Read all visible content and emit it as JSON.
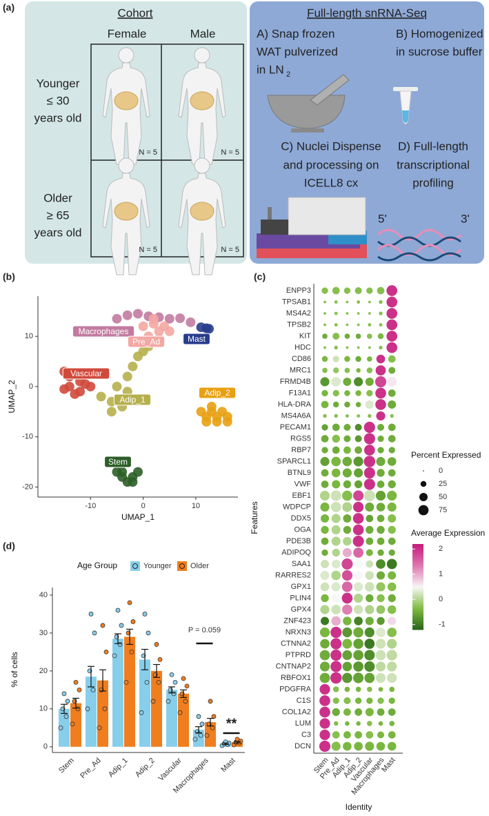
{
  "figure": {
    "panel_labels": [
      "(a)",
      "(b)",
      "(c)",
      "(d)"
    ],
    "cohort": {
      "title": "Cohort",
      "columns": [
        "Female",
        "Male"
      ],
      "rows": [
        [
          "Younger",
          "≤ 30",
          "years old"
        ],
        [
          "Older",
          "≥ 65",
          "years old"
        ]
      ],
      "counts": [
        "N = 5",
        "N = 5",
        "N = 5",
        "N = 5"
      ]
    },
    "protocol": {
      "title": "Full-length snRNA-Seq",
      "steps": [
        {
          "lines": [
            "A) Snap frozen",
            "WAT pulverized",
            "in LN"
          ],
          "subscript": "2"
        },
        {
          "lines": [
            "B) Homogenized",
            "in sucrose buffer"
          ]
        },
        {
          "lines": [
            "C) Nuclei Dispense",
            "and processing on",
            "ICELL8 cx"
          ]
        },
        {
          "lines": [
            "D) Full-length",
            "transcriptional",
            "profiling"
          ]
        }
      ],
      "ends": [
        "5'",
        "3'"
      ]
    }
  },
  "chart_data": [
    {
      "type": "scatter",
      "xlabel": "UMAP_1",
      "ylabel": "UMAP_2",
      "xlim": [
        -20,
        18
      ],
      "ylim": [
        -22,
        18
      ],
      "xticks": [
        -10,
        0,
        10
      ],
      "yticks": [
        -20,
        -10,
        0,
        10
      ],
      "series": [
        {
          "name": "Macrophages",
          "color": "#C27BA0",
          "x": [
            -5,
            -3,
            -1,
            1,
            3,
            5,
            7,
            9
          ],
          "y": [
            13.5,
            14.2,
            14.5,
            14.0,
            13.8,
            13.5,
            13.6,
            12.8
          ]
        },
        {
          "name": "Pre_Ad",
          "color": "#F4A7A3",
          "x": [
            0,
            2,
            3,
            4,
            5,
            3,
            1,
            2
          ],
          "y": [
            12,
            12.5,
            11,
            12,
            11,
            9.5,
            10,
            13.5
          ]
        },
        {
          "name": "Mast",
          "color": "#283C8C",
          "x": [
            11,
            12,
            12.5
          ],
          "y": [
            11.8,
            11.6,
            11.5
          ]
        },
        {
          "name": "Vascular",
          "color": "#D04A3C",
          "x": [
            -15,
            -14,
            -13,
            -12,
            -11,
            -14,
            -12,
            -10,
            -15,
            -13
          ],
          "y": [
            3,
            2,
            2.5,
            1,
            0.5,
            0,
            -1,
            0,
            -0.5,
            -1.5
          ]
        },
        {
          "name": "Adip_1",
          "color": "#B6B04C",
          "x": [
            -8,
            -6,
            -5,
            -4,
            -3,
            -2,
            -1,
            0,
            1,
            2,
            -3,
            -6
          ],
          "y": [
            -2,
            -3,
            0,
            -4,
            2,
            4,
            6,
            7,
            8,
            9,
            -1,
            -5
          ]
        },
        {
          "name": "Adip_2",
          "color": "#E8A012",
          "x": [
            11,
            12,
            13,
            14,
            15,
            16,
            12,
            14,
            16,
            13
          ],
          "y": [
            -5,
            -6,
            -5,
            -6,
            -5,
            -6,
            -7,
            -7,
            -7,
            -4
          ]
        },
        {
          "name": "Stem",
          "color": "#2D5E28",
          "x": [
            -5,
            -4,
            -3,
            -2,
            -1,
            -4,
            -2
          ],
          "y": [
            -17,
            -18,
            -19,
            -18,
            -17,
            -17,
            -19
          ]
        }
      ]
    },
    {
      "type": "dot",
      "xlabel": "Identity",
      "ylabel": "Features",
      "categories": [
        "Stem",
        "Pre_Ad",
        "Adip_1",
        "Adip_2",
        "Vascular",
        "Macrophages",
        "Mast"
      ],
      "features": [
        "ENPP3",
        "TPSAB1",
        "MS4A2",
        "TPSB2",
        "KIT",
        "HDC",
        "CD86",
        "MRC1",
        "FRMD4B",
        "F13A1",
        "HLA-DRA",
        "MS4A6A",
        "PECAM1",
        "RGS5",
        "RBP7",
        "SPARCL1",
        "BTNL9",
        "VWF",
        "EBF1",
        "WDPCP",
        "DDX5",
        "OGA",
        "PDE3B",
        "ADIPOQ",
        "SAA1",
        "RARRES2",
        "GPX1",
        "PLIN4",
        "GPX4",
        "ZNF423",
        "NRXN3",
        "CTNNA2",
        "PTPRD",
        "CNTNAP2",
        "RBFOX1",
        "PDGFRA",
        "C1S",
        "COL1A2",
        "LUM",
        "C3",
        "DCN"
      ],
      "percent": [
        [
          30,
          40,
          30,
          35,
          30,
          40,
          85
        ],
        [
          5,
          8,
          5,
          8,
          5,
          10,
          85
        ],
        [
          5,
          8,
          5,
          5,
          5,
          10,
          85
        ],
        [
          5,
          8,
          5,
          5,
          8,
          8,
          85
        ],
        [
          20,
          35,
          20,
          20,
          20,
          25,
          85
        ],
        [
          5,
          10,
          5,
          5,
          5,
          10,
          85
        ],
        [
          25,
          30,
          25,
          25,
          20,
          55,
          40
        ],
        [
          20,
          25,
          20,
          15,
          25,
          75,
          35
        ],
        [
          60,
          65,
          50,
          60,
          50,
          90,
          70
        ],
        [
          30,
          30,
          25,
          25,
          30,
          85,
          40
        ],
        [
          40,
          25,
          25,
          20,
          50,
          85,
          50
        ],
        [
          10,
          10,
          8,
          8,
          10,
          60,
          10
        ],
        [
          30,
          40,
          35,
          35,
          90,
          35,
          40
        ],
        [
          40,
          45,
          35,
          35,
          90,
          30,
          40
        ],
        [
          30,
          40,
          40,
          40,
          85,
          30,
          30
        ],
        [
          60,
          65,
          65,
          70,
          95,
          60,
          55
        ],
        [
          40,
          55,
          60,
          60,
          90,
          45,
          40
        ],
        [
          40,
          50,
          45,
          45,
          90,
          40,
          45
        ],
        [
          70,
          80,
          75,
          80,
          90,
          70,
          70
        ],
        [
          60,
          75,
          70,
          80,
          60,
          55,
          60
        ],
        [
          50,
          60,
          50,
          85,
          40,
          40,
          50
        ],
        [
          45,
          60,
          45,
          85,
          45,
          45,
          45
        ],
        [
          40,
          60,
          55,
          90,
          40,
          40,
          40
        ],
        [
          30,
          45,
          60,
          75,
          35,
          30,
          30
        ],
        [
          50,
          55,
          90,
          50,
          40,
          65,
          75
        ],
        [
          60,
          65,
          80,
          50,
          55,
          50,
          50
        ],
        [
          55,
          60,
          80,
          60,
          65,
          60,
          55
        ],
        [
          45,
          60,
          85,
          60,
          45,
          45,
          45
        ],
        [
          60,
          65,
          75,
          60,
          60,
          55,
          55
        ],
        [
          50,
          65,
          55,
          55,
          50,
          45,
          50
        ],
        [
          70,
          90,
          70,
          75,
          70,
          65,
          65
        ],
        [
          65,
          90,
          70,
          75,
          75,
          70,
          70
        ],
        [
          75,
          90,
          70,
          75,
          80,
          75,
          80
        ],
        [
          70,
          90,
          65,
          75,
          80,
          70,
          70
        ],
        [
          75,
          95,
          75,
          80,
          75,
          70,
          70
        ],
        [
          80,
          25,
          20,
          20,
          20,
          15,
          20
        ],
        [
          85,
          30,
          35,
          30,
          30,
          30,
          30
        ],
        [
          85,
          45,
          40,
          40,
          50,
          40,
          40
        ],
        [
          80,
          15,
          15,
          15,
          20,
          15,
          20
        ],
        [
          80,
          40,
          40,
          40,
          40,
          35,
          40
        ],
        [
          90,
          60,
          55,
          55,
          60,
          55,
          55
        ]
      ],
      "avg_expression": [
        [
          -0.3,
          -0.3,
          -0.3,
          -0.3,
          -0.3,
          -0.3,
          2.0
        ],
        [
          -0.3,
          -0.3,
          -0.3,
          -0.3,
          -0.3,
          -0.3,
          2.0
        ],
        [
          -0.3,
          -0.3,
          -0.3,
          -0.3,
          -0.3,
          -0.3,
          2.0
        ],
        [
          -0.3,
          -0.3,
          -0.3,
          -0.3,
          -0.3,
          -0.3,
          2.0
        ],
        [
          -0.5,
          -0.3,
          -0.5,
          -0.5,
          -0.3,
          -0.4,
          2.0
        ],
        [
          -0.3,
          -0.3,
          -0.3,
          -0.3,
          -0.3,
          -0.3,
          2.0
        ],
        [
          -0.4,
          0.2,
          -0.4,
          -0.5,
          -0.4,
          2.0,
          -0.3
        ],
        [
          -0.3,
          -0.2,
          -0.3,
          -0.4,
          -0.3,
          2.0,
          -0.5
        ],
        [
          -0.7,
          0.3,
          -0.5,
          -0.8,
          -0.5,
          1.8,
          0.6
        ],
        [
          -0.4,
          -0.3,
          -0.4,
          -0.4,
          -0.3,
          2.0,
          -0.5
        ],
        [
          -0.4,
          -0.5,
          -0.5,
          -0.5,
          0.3,
          2.0,
          -0.5
        ],
        [
          -0.3,
          -0.3,
          -0.3,
          -0.3,
          -0.3,
          2.0,
          -0.3
        ],
        [
          -0.6,
          -0.5,
          -0.5,
          -0.8,
          2.0,
          -0.5,
          -0.5
        ],
        [
          -0.5,
          -0.3,
          -0.5,
          -0.7,
          2.0,
          -0.5,
          -0.5
        ],
        [
          -0.5,
          -0.5,
          -0.4,
          -0.5,
          2.0,
          -0.5,
          -0.5
        ],
        [
          -0.6,
          -0.4,
          -0.5,
          -0.7,
          2.0,
          -0.5,
          -0.5
        ],
        [
          -0.5,
          -0.4,
          -0.5,
          -0.6,
          2.0,
          -0.5,
          -0.5
        ],
        [
          -0.5,
          -0.4,
          -0.5,
          -0.6,
          2.0,
          -0.5,
          -0.5
        ],
        [
          0,
          0.2,
          -0.3,
          1.8,
          0.2,
          -0.6,
          -0.4
        ],
        [
          -0.4,
          0.2,
          0,
          2.0,
          -0.5,
          -0.5,
          -0.4
        ],
        [
          -0.4,
          0,
          -0.5,
          2.0,
          -0.6,
          -0.5,
          -0.3
        ],
        [
          -0.4,
          0,
          -0.5,
          2.0,
          -0.5,
          -0.5,
          -0.3
        ],
        [
          -0.5,
          0,
          0,
          2.0,
          -0.5,
          -0.5,
          -0.5
        ],
        [
          -0.5,
          0,
          1.0,
          1.5,
          -0.4,
          -0.5,
          -0.5
        ],
        [
          0.2,
          0.3,
          1.8,
          0.5,
          0.2,
          -0.8,
          -1.0
        ],
        [
          0.3,
          0,
          1.7,
          0.5,
          0.2,
          -0.5,
          -0.4
        ],
        [
          0.2,
          0.3,
          1.5,
          0.3,
          0.2,
          -0.2,
          -0.3
        ],
        [
          -0.4,
          0.5,
          2.0,
          0,
          -0.5,
          -0.3,
          -0.5
        ],
        [
          0,
          0.2,
          1.3,
          0.2,
          0,
          -0.2,
          -0.3
        ],
        [
          -1.0,
          1.0,
          -0.4,
          -0.9,
          -0.5,
          -0.7,
          0.7
        ],
        [
          -0.4,
          2.0,
          -0.7,
          -0.5,
          -0.8,
          0.3,
          -0.3
        ],
        [
          -0.5,
          2.0,
          -0.4,
          -0.6,
          -1.0,
          0.2,
          0
        ],
        [
          -0.5,
          2.0,
          -0.6,
          -0.6,
          -0.8,
          0.2,
          0.1
        ],
        [
          -0.5,
          2.0,
          -0.6,
          -0.7,
          -0.8,
          0.1,
          0.1
        ],
        [
          -0.5,
          2.0,
          -0.7,
          -0.6,
          -0.6,
          0.2,
          0.2
        ],
        [
          2.0,
          -0.3,
          -0.4,
          -0.4,
          -0.3,
          -0.4,
          -0.4
        ],
        [
          2.0,
          -0.3,
          -0.3,
          -0.4,
          -0.4,
          -0.3,
          -0.4
        ],
        [
          2.0,
          -0.5,
          -0.4,
          -0.5,
          -0.4,
          -0.5,
          -0.5
        ],
        [
          2.0,
          -0.3,
          -0.4,
          -0.4,
          -0.3,
          -0.4,
          -0.4
        ],
        [
          2.0,
          -0.3,
          -0.4,
          -0.4,
          -0.3,
          -0.4,
          -0.4
        ],
        [
          2.0,
          -0.3,
          -0.4,
          -0.4,
          -0.4,
          -0.4,
          -0.4
        ]
      ],
      "size_legend": {
        "title": "Percent Expressed",
        "ticks": [
          0,
          25,
          50,
          75
        ]
      },
      "color_legend": {
        "title": "Average Expression",
        "ticks": [
          -1,
          0,
          1,
          2
        ],
        "range": [
          -1.2,
          2.2
        ],
        "colors": [
          "#276419",
          "#7FBC41",
          "#F7F7F7",
          "#DE77AE",
          "#C51B7D"
        ]
      }
    },
    {
      "type": "bar",
      "ylabel": "% of cells",
      "legend_title": "Age Group",
      "categories": [
        "Stem",
        "Pre_Ad",
        "Adip_1",
        "Adip_2",
        "Vascular",
        "Macrophages",
        "Mast"
      ],
      "ylim": [
        -1.5,
        42
      ],
      "yticks": [
        0,
        10,
        20,
        30,
        40
      ],
      "series": [
        {
          "name": "Younger",
          "color": "#87CEEB",
          "values": [
            10,
            18.5,
            28.5,
            23,
            15,
            4.5,
            0.8
          ],
          "errors": [
            1.2,
            2.7,
            1.3,
            2.7,
            0.8,
            0.8,
            0.2
          ],
          "points": [
            [
              5,
              8,
              10,
              12,
              14
            ],
            [
              10,
              15,
              20,
              30,
              35
            ],
            [
              24,
              27,
              29,
              32,
              36
            ],
            [
              9,
              17,
              24,
              30,
              35
            ],
            [
              12,
              14,
              15,
              17,
              19
            ],
            [
              2,
              3,
              4,
              6,
              8
            ],
            [
              0.3,
              0.6,
              0.8,
              1,
              1.3
            ]
          ]
        },
        {
          "name": "Older",
          "color": "#F07D1E",
          "values": [
            11.5,
            17.5,
            29,
            20,
            14,
            6.5,
            1.2
          ],
          "errors": [
            1.3,
            2.8,
            2,
            1.7,
            1,
            1,
            0.2
          ],
          "points": [
            [
              6,
              10,
              12,
              15,
              17
            ],
            [
              5,
              10,
              15,
              25,
              32
            ],
            [
              17,
              25,
              30,
              33,
              38
            ],
            [
              12,
              17,
              19,
              23,
              27
            ],
            [
              9,
              12,
              14,
              16,
              18
            ],
            [
              3,
              5,
              6,
              8,
              12
            ],
            [
              0.5,
              1,
              1.2,
              1.5,
              2
            ]
          ]
        }
      ],
      "annotations": [
        "P = 0.059",
        "**"
      ]
    }
  ]
}
